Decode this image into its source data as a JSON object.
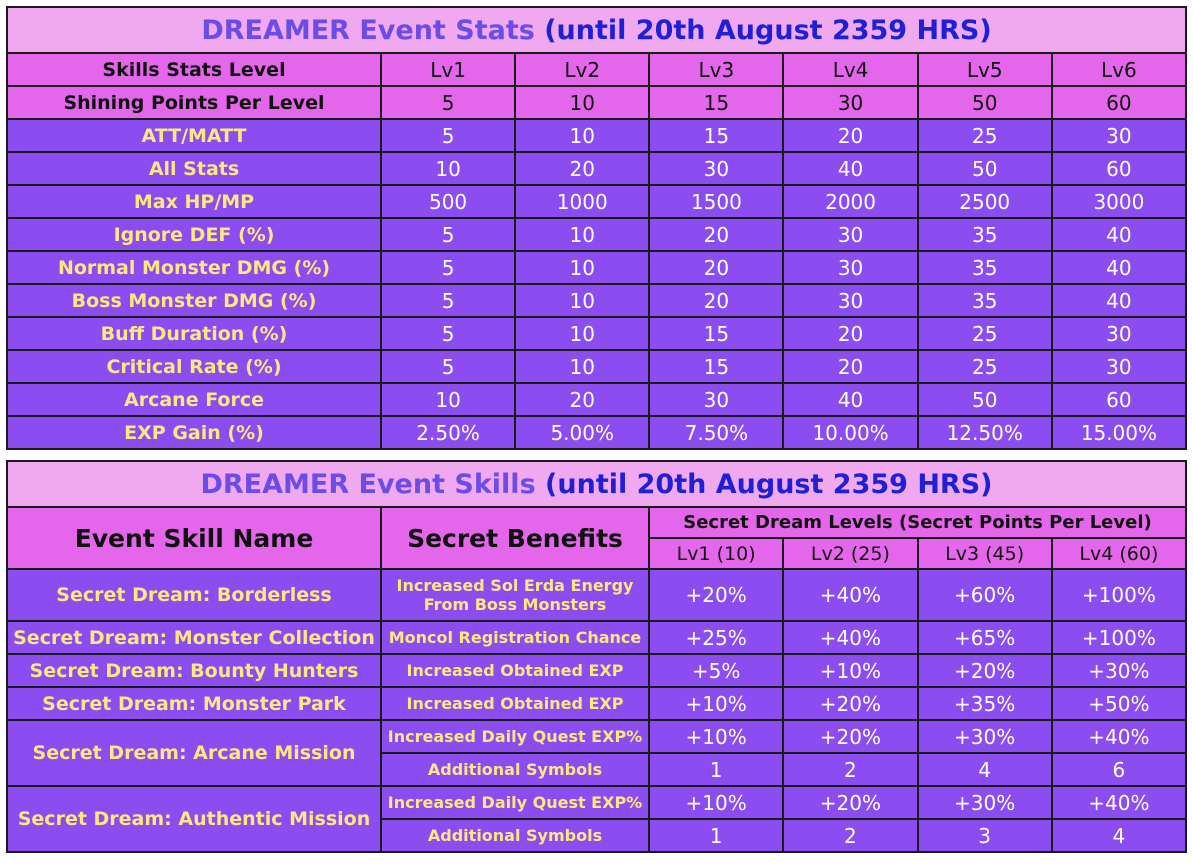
{
  "stats": {
    "title_main": "DREAMER Event Stats",
    "title_highlight": "(until 20th August 2359 HRS)",
    "header_label": "Skills Stats Level",
    "levels": [
      "Lv1",
      "Lv2",
      "Lv3",
      "Lv4",
      "Lv5",
      "Lv6"
    ],
    "points_label": "Shining Points Per Level",
    "points": [
      "5",
      "10",
      "15",
      "30",
      "50",
      "60"
    ],
    "rows": [
      {
        "label": "ATT/MATT",
        "values": [
          "5",
          "10",
          "15",
          "20",
          "25",
          "30"
        ]
      },
      {
        "label": "All Stats",
        "values": [
          "10",
          "20",
          "30",
          "40",
          "50",
          "60"
        ]
      },
      {
        "label": "Max HP/MP",
        "values": [
          "500",
          "1000",
          "1500",
          "2000",
          "2500",
          "3000"
        ]
      },
      {
        "label": "Ignore DEF (%)",
        "values": [
          "5",
          "10",
          "20",
          "30",
          "35",
          "40"
        ]
      },
      {
        "label": "Normal Monster DMG (%)",
        "values": [
          "5",
          "10",
          "20",
          "30",
          "35",
          "40"
        ]
      },
      {
        "label": "Boss Monster DMG (%)",
        "values": [
          "5",
          "10",
          "20",
          "30",
          "35",
          "40"
        ]
      },
      {
        "label": "Buff Duration (%)",
        "values": [
          "5",
          "10",
          "15",
          "20",
          "25",
          "30"
        ]
      },
      {
        "label": "Critical Rate (%)",
        "values": [
          "5",
          "10",
          "15",
          "20",
          "25",
          "30"
        ]
      },
      {
        "label": "Arcane Force",
        "values": [
          "10",
          "20",
          "30",
          "40",
          "50",
          "60"
        ]
      },
      {
        "label": "EXP Gain (%)",
        "values": [
          "2.50%",
          "5.00%",
          "7.50%",
          "10.00%",
          "12.50%",
          "15.00%"
        ]
      }
    ]
  },
  "skills": {
    "title_main": "DREAMER Event Skills",
    "title_highlight": "(until 20th August 2359 HRS)",
    "col_name": "Event Skill Name",
    "col_benefits": "Secret Benefits",
    "col_levels_group": "Secret Dream Levels (Secret Points Per Level)",
    "levels": [
      "Lv1 (10)",
      "Lv2 (25)",
      "Lv3 (45)",
      "Lv4 (60)"
    ],
    "rows": [
      {
        "name": "Secret Dream: Borderless",
        "benefits": [
          {
            "text": "Increased Sol Erda Energy From Boss Monsters",
            "values": [
              "+20%",
              "+40%",
              "+60%",
              "+100%"
            ]
          }
        ]
      },
      {
        "name": "Secret Dream: Monster Collection",
        "benefits": [
          {
            "text": "Moncol Registration Chance",
            "values": [
              "+25%",
              "+40%",
              "+65%",
              "+100%"
            ]
          }
        ]
      },
      {
        "name": "Secret Dream: Bounty Hunters",
        "benefits": [
          {
            "text": "Increased Obtained EXP",
            "values": [
              "+5%",
              "+10%",
              "+20%",
              "+30%"
            ]
          }
        ]
      },
      {
        "name": "Secret Dream: Monster Park",
        "benefits": [
          {
            "text": "Increased Obtained EXP",
            "values": [
              "+10%",
              "+20%",
              "+35%",
              "+50%"
            ]
          }
        ]
      },
      {
        "name": "Secret Dream: Arcane Mission",
        "benefits": [
          {
            "text": "Increased Daily Quest EXP%",
            "values": [
              "+10%",
              "+20%",
              "+30%",
              "+40%"
            ]
          },
          {
            "text": "Additional Symbols",
            "values": [
              "1",
              "2",
              "4",
              "6"
            ]
          }
        ]
      },
      {
        "name": "Secret Dream: Authentic Mission",
        "benefits": [
          {
            "text": "Increased Daily Quest EXP%",
            "values": [
              "+10%",
              "+20%",
              "+30%",
              "+40%"
            ]
          },
          {
            "text": "Additional Symbols",
            "values": [
              "1",
              "2",
              "3",
              "4"
            ]
          }
        ]
      }
    ]
  }
}
